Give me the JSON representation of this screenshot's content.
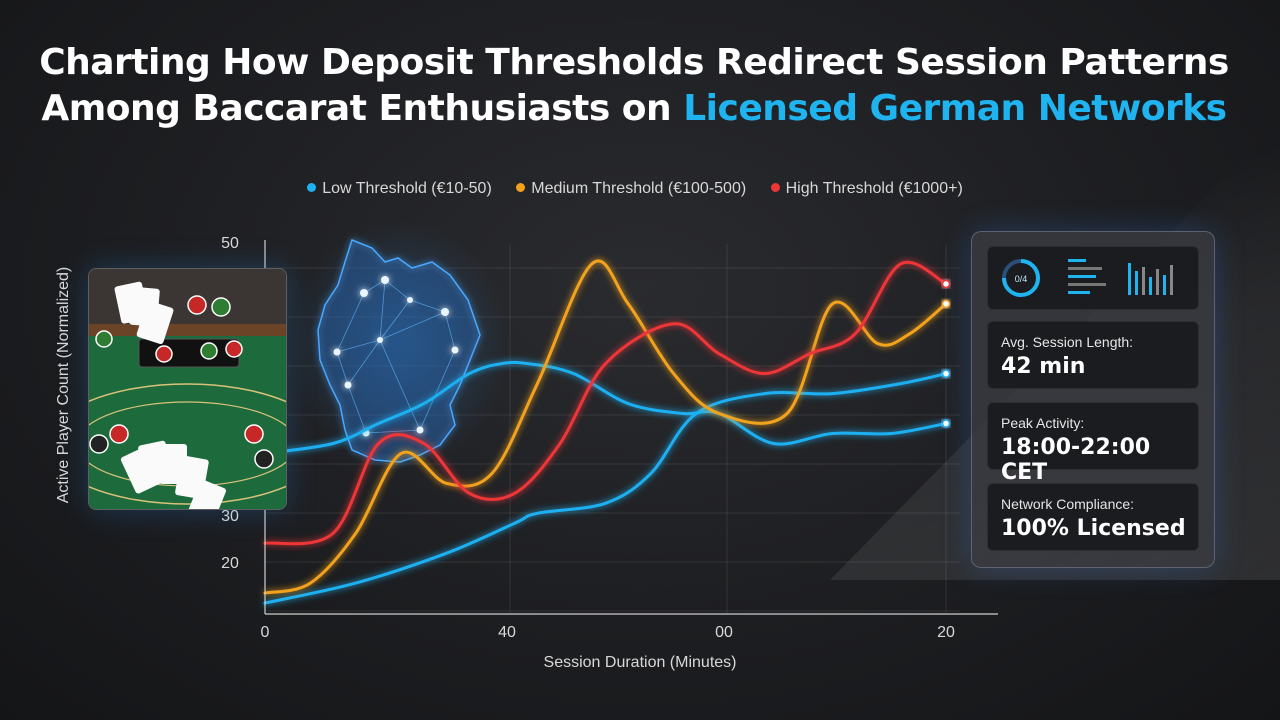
{
  "title": {
    "line1": "Charting How Deposit Thresholds Redirect Session Patterns",
    "line2_prefix": "Among Baccarat Enthusiasts on ",
    "line2_accent": "Licensed German Networks"
  },
  "colors": {
    "accent": "#1fb4f0",
    "low": "#1fb0f2",
    "medium": "#f3a21c",
    "high": "#ee3638"
  },
  "panel": {
    "gauge_text": "0/4",
    "cards": [
      {
        "label": "Avg. Session Length:",
        "value": "42 min"
      },
      {
        "label": "Peak Activity:",
        "value": "18:00-22:00 CET"
      },
      {
        "label": "Network Compliance:",
        "value": "100% Licensed"
      }
    ]
  },
  "chart_data": {
    "type": "line",
    "xlabel": "Session Duration (Minutes)",
    "ylabel": "Active Player Count (Normalized)",
    "x_ticks": [
      "0",
      "40",
      "00",
      "20"
    ],
    "y_ticks": [
      "50",
      "30",
      "20"
    ],
    "xlim": [
      0,
      150
    ],
    "ylim": [
      13,
      50
    ],
    "grid": true,
    "legend": "top-center",
    "series": [
      {
        "name": "Low Threshold (€10-50)",
        "color": "#1fb0f2",
        "x": [
          0,
          20,
          40,
          55,
          60,
          75,
          85,
          95,
          110,
          125,
          140,
          150
        ],
        "y": [
          14,
          16,
          19,
          22,
          23,
          24,
          27,
          33,
          35,
          35,
          36,
          37
        ]
      },
      {
        "name": "Low Threshold (€10-50)",
        "color": "#1fb0f2",
        "x": [
          0,
          15,
          25,
          35,
          45,
          52,
          58,
          68,
          80,
          92,
          100,
          112,
          125,
          138,
          150
        ],
        "y": [
          29,
          30,
          32,
          34,
          37,
          38,
          38,
          37,
          34,
          33,
          33,
          30,
          31,
          31,
          32
        ]
      },
      {
        "name": "Medium Threshold (€100-500)",
        "color": "#f3a21c",
        "x": [
          0,
          10,
          20,
          30,
          40,
          50,
          60,
          72,
          80,
          90,
          100,
          115,
          125,
          135,
          142,
          150
        ],
        "y": [
          15,
          16,
          21,
          29,
          26,
          27,
          36,
          48,
          44,
          37,
          33,
          33,
          44,
          40,
          41,
          44
        ]
      },
      {
        "name": "High Threshold (€1000+)",
        "color": "#ee3638",
        "x": [
          0,
          15,
          25,
          35,
          45,
          55,
          65,
          75,
          90,
          100,
          110,
          120,
          130,
          140,
          150
        ],
        "y": [
          20,
          21,
          30,
          30,
          25,
          25,
          30,
          38,
          42,
          39,
          37,
          39,
          41,
          48,
          46
        ]
      }
    ]
  }
}
